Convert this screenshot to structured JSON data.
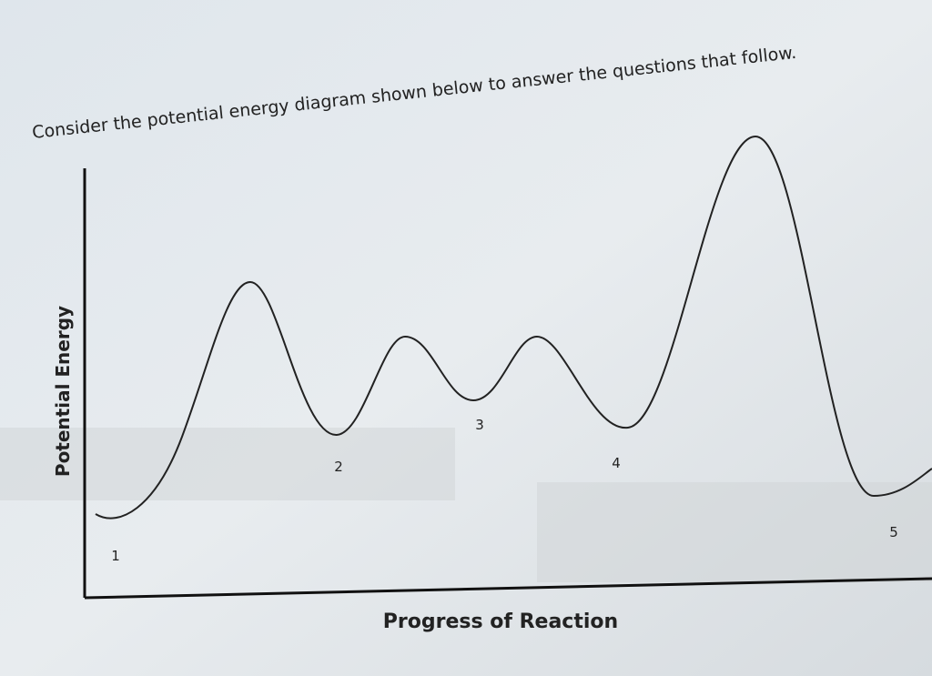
{
  "header": {
    "instruction": "Consider the potential energy diagram shown below to answer the questions that follow."
  },
  "axes": {
    "y_label": "Potential Energy",
    "x_label": "Progress of Reaction"
  },
  "points": [
    {
      "label": "1"
    },
    {
      "label": "2"
    },
    {
      "label": "3"
    },
    {
      "label": "4"
    },
    {
      "label": "5"
    }
  ]
}
